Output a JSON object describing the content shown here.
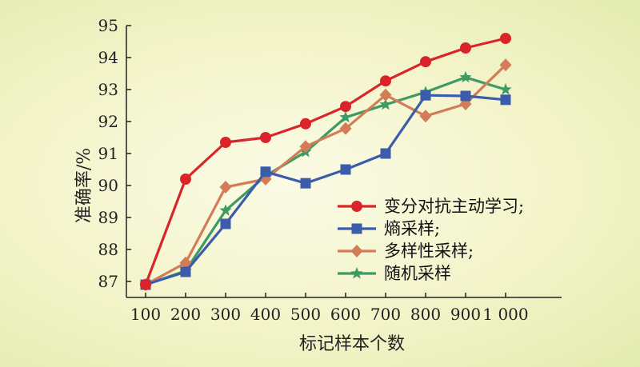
{
  "chart_data": {
    "type": "line",
    "xlabel": "标记样本个数",
    "ylabel": "准确率/%",
    "x": [
      "100",
      "200",
      "300",
      "400",
      "500",
      "600",
      "700",
      "800",
      "900",
      "1 000"
    ],
    "ylim": [
      86.5,
      95
    ],
    "yticks": [
      "87",
      "88",
      "89",
      "90",
      "91",
      "92",
      "93",
      "94",
      "95"
    ],
    "grid": false,
    "legend_position": "lower-right",
    "series": [
      {
        "name": "变分对抗主动学习;",
        "color": "#d9252a",
        "marker": "circle",
        "values": [
          86.9,
          90.2,
          91.35,
          91.5,
          91.93,
          92.47,
          93.27,
          93.87,
          94.3,
          94.6
        ]
      },
      {
        "name": "熵采样;",
        "color": "#3b5cab",
        "marker": "square",
        "values": [
          86.9,
          87.3,
          88.8,
          90.43,
          90.07,
          90.5,
          91.0,
          92.82,
          92.8,
          92.68
        ]
      },
      {
        "name": "多样性采样;",
        "color": "#d27c58",
        "marker": "diamond",
        "values": [
          86.9,
          87.58,
          89.95,
          90.2,
          91.22,
          91.78,
          92.83,
          92.17,
          92.55,
          93.77
        ]
      },
      {
        "name": "随机采样",
        "color": "#3d9a62",
        "marker": "star",
        "values": [
          86.9,
          87.33,
          89.22,
          90.3,
          91.05,
          92.13,
          92.53,
          92.92,
          93.38,
          93.0
        ]
      }
    ]
  }
}
